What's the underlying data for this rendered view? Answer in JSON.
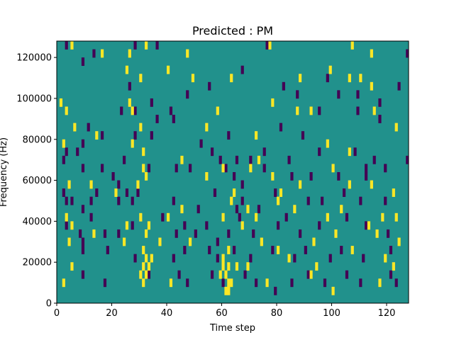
{
  "chart_data": {
    "type": "heatmap",
    "title": "Predicted : PM",
    "xlabel": "Time step",
    "ylabel": "Frequency (Hz)",
    "xlim": [
      0,
      128
    ],
    "ylim": [
      0,
      128000
    ],
    "xticks": [
      0,
      20,
      40,
      60,
      80,
      100,
      120
    ],
    "yticks": [
      0,
      20000,
      40000,
      60000,
      80000,
      100000,
      120000
    ],
    "xtick_labels": [
      "0",
      "20",
      "40",
      "60",
      "80",
      "100",
      "120"
    ],
    "ytick_labels": [
      "0",
      "20000",
      "40000",
      "60000",
      "80000",
      "100000",
      "120000"
    ],
    "grid": false,
    "bin_width": 1,
    "bin_height": 4000,
    "colors": {
      "background": "#21918c",
      "low": "#440154",
      "high": "#fde725",
      "axes": "#000000"
    },
    "cells_low": [
      [
        3,
        124000
      ],
      [
        9,
        116000
      ],
      [
        13,
        120000
      ],
      [
        28,
        124000
      ],
      [
        36,
        124000
      ],
      [
        76,
        124000
      ],
      [
        127,
        120000
      ],
      [
        26,
        104000
      ],
      [
        34,
        96000
      ],
      [
        41,
        92000
      ],
      [
        47,
        100000
      ],
      [
        55,
        104000
      ],
      [
        67,
        112000
      ],
      [
        82,
        104000
      ],
      [
        87,
        100000
      ],
      [
        98,
        108000
      ],
      [
        102,
        100000
      ],
      [
        109,
        100000
      ],
      [
        117,
        96000
      ],
      [
        124,
        104000
      ],
      [
        23,
        92000
      ],
      [
        28,
        92000
      ],
      [
        36,
        88000
      ],
      [
        42,
        88000
      ],
      [
        81,
        84000
      ],
      [
        95,
        92000
      ],
      [
        109,
        92000
      ],
      [
        117,
        88000
      ],
      [
        11,
        84000
      ],
      [
        16,
        80000
      ],
      [
        28,
        80000
      ],
      [
        34,
        80000
      ],
      [
        62,
        80000
      ],
      [
        89,
        80000
      ],
      [
        3,
        72000
      ],
      [
        7,
        72000
      ],
      [
        9,
        76000
      ],
      [
        24,
        68000
      ],
      [
        52,
        76000
      ],
      [
        56,
        72000
      ],
      [
        65,
        68000
      ],
      [
        70,
        68000
      ],
      [
        75,
        72000
      ],
      [
        84,
        68000
      ],
      [
        95,
        72000
      ],
      [
        108,
        72000
      ],
      [
        115,
        68000
      ],
      [
        112,
        64000
      ],
      [
        119,
        64000
      ],
      [
        127,
        68000
      ],
      [
        2,
        68000
      ],
      [
        9,
        64000
      ],
      [
        16,
        64000
      ],
      [
        20,
        60000
      ],
      [
        22,
        56000
      ],
      [
        25,
        52000
      ],
      [
        33,
        64000
      ],
      [
        43,
        64000
      ],
      [
        48,
        64000
      ],
      [
        59,
        68000
      ],
      [
        61,
        64000
      ],
      [
        64,
        60000
      ],
      [
        67,
        56000
      ],
      [
        75,
        64000
      ],
      [
        85,
        60000
      ],
      [
        92,
        60000
      ],
      [
        102,
        60000
      ],
      [
        112,
        60000
      ],
      [
        2,
        52000
      ],
      [
        3,
        48000
      ],
      [
        5,
        48000
      ],
      [
        9,
        44000
      ],
      [
        12,
        48000
      ],
      [
        14,
        52000
      ],
      [
        22,
        48000
      ],
      [
        27,
        48000
      ],
      [
        29,
        52000
      ],
      [
        42,
        48000
      ],
      [
        51,
        44000
      ],
      [
        57,
        52000
      ],
      [
        65,
        44000
      ],
      [
        67,
        48000
      ],
      [
        73,
        44000
      ],
      [
        79,
        52000
      ],
      [
        91,
        48000
      ],
      [
        96,
        48000
      ],
      [
        104,
        52000
      ],
      [
        110,
        48000
      ],
      [
        119,
        48000
      ],
      [
        3,
        36000
      ],
      [
        8,
        32000
      ],
      [
        9,
        28000
      ],
      [
        12,
        40000
      ],
      [
        17,
        32000
      ],
      [
        22,
        32000
      ],
      [
        27,
        36000
      ],
      [
        38,
        40000
      ],
      [
        43,
        32000
      ],
      [
        46,
        36000
      ],
      [
        50,
        32000
      ],
      [
        54,
        36000
      ],
      [
        58,
        28000
      ],
      [
        62,
        32000
      ],
      [
        66,
        40000
      ],
      [
        71,
        32000
      ],
      [
        80,
        36000
      ],
      [
        83,
        40000
      ],
      [
        88,
        32000
      ],
      [
        95,
        36000
      ],
      [
        105,
        40000
      ],
      [
        112,
        36000
      ],
      [
        120,
        32000
      ],
      [
        9,
        24000
      ],
      [
        18,
        24000
      ],
      [
        28,
        20000
      ],
      [
        42,
        20000
      ],
      [
        46,
        24000
      ],
      [
        55,
        24000
      ],
      [
        58,
        20000
      ],
      [
        64,
        24000
      ],
      [
        70,
        20000
      ],
      [
        78,
        24000
      ],
      [
        86,
        20000
      ],
      [
        90,
        24000
      ],
      [
        99,
        20000
      ],
      [
        103,
        24000
      ],
      [
        111,
        20000
      ],
      [
        121,
        24000
      ],
      [
        9,
        12000
      ],
      [
        17,
        8000
      ],
      [
        33,
        12000
      ],
      [
        44,
        12000
      ],
      [
        47,
        8000
      ],
      [
        56,
        12000
      ],
      [
        60,
        8000
      ],
      [
        68,
        12000
      ],
      [
        72,
        8000
      ],
      [
        79,
        4000
      ],
      [
        85,
        8000
      ],
      [
        91,
        12000
      ],
      [
        97,
        8000
      ],
      [
        105,
        12000
      ],
      [
        110,
        8000
      ],
      [
        121,
        12000
      ],
      [
        123,
        8000
      ]
    ],
    "cells_high": [
      [
        5,
        124000
      ],
      [
        16,
        120000
      ],
      [
        26,
        120000
      ],
      [
        32,
        124000
      ],
      [
        47,
        120000
      ],
      [
        77,
        124000
      ],
      [
        107,
        124000
      ],
      [
        114,
        120000
      ],
      [
        25,
        112000
      ],
      [
        40,
        112000
      ],
      [
        30,
        108000
      ],
      [
        49,
        108000
      ],
      [
        63,
        108000
      ],
      [
        88,
        108000
      ],
      [
        99,
        112000
      ],
      [
        106,
        108000
      ],
      [
        110,
        108000
      ],
      [
        114,
        104000
      ],
      [
        1,
        96000
      ],
      [
        3,
        92000
      ],
      [
        6,
        84000
      ],
      [
        26,
        96000
      ],
      [
        27,
        92000
      ],
      [
        30,
        84000
      ],
      [
        58,
        92000
      ],
      [
        78,
        96000
      ],
      [
        87,
        92000
      ],
      [
        92,
        92000
      ],
      [
        115,
        92000
      ],
      [
        123,
        84000
      ],
      [
        2,
        76000
      ],
      [
        14,
        80000
      ],
      [
        27,
        76000
      ],
      [
        31,
        72000
      ],
      [
        54,
        84000
      ],
      [
        72,
        80000
      ],
      [
        98,
        76000
      ],
      [
        106,
        72000
      ],
      [
        4,
        56000
      ],
      [
        12,
        56000
      ],
      [
        21,
        52000
      ],
      [
        29,
        56000
      ],
      [
        31,
        64000
      ],
      [
        32,
        60000
      ],
      [
        45,
        68000
      ],
      [
        54,
        60000
      ],
      [
        60,
        64000
      ],
      [
        64,
        52000
      ],
      [
        70,
        64000
      ],
      [
        73,
        68000
      ],
      [
        78,
        60000
      ],
      [
        81,
        52000
      ],
      [
        88,
        56000
      ],
      [
        100,
        64000
      ],
      [
        106,
        56000
      ],
      [
        114,
        56000
      ],
      [
        122,
        52000
      ],
      [
        3,
        40000
      ],
      [
        5,
        36000
      ],
      [
        25,
        36000
      ],
      [
        30,
        40000
      ],
      [
        32,
        32000
      ],
      [
        33,
        36000
      ],
      [
        40,
        40000
      ],
      [
        45,
        44000
      ],
      [
        60,
        40000
      ],
      [
        63,
        48000
      ],
      [
        67,
        36000
      ],
      [
        69,
        44000
      ],
      [
        72,
        40000
      ],
      [
        80,
        48000
      ],
      [
        86,
        44000
      ],
      [
        98,
        40000
      ],
      [
        103,
        44000
      ],
      [
        113,
        36000
      ],
      [
        116,
        32000
      ],
      [
        118,
        40000
      ],
      [
        123,
        40000
      ],
      [
        4,
        28000
      ],
      [
        13,
        32000
      ],
      [
        24,
        28000
      ],
      [
        31,
        24000
      ],
      [
        34,
        20000
      ],
      [
        37,
        28000
      ],
      [
        48,
        28000
      ],
      [
        60,
        20000
      ],
      [
        62,
        24000
      ],
      [
        65,
        16000
      ],
      [
        74,
        28000
      ],
      [
        80,
        24000
      ],
      [
        84,
        20000
      ],
      [
        93,
        28000
      ],
      [
        101,
        32000
      ],
      [
        107,
        24000
      ],
      [
        119,
        20000
      ],
      [
        124,
        28000
      ],
      [
        2,
        8000
      ],
      [
        5,
        16000
      ],
      [
        30,
        12000
      ],
      [
        31,
        8000
      ],
      [
        41,
        8000
      ],
      [
        59,
        12000
      ],
      [
        61,
        4000
      ],
      [
        63,
        8000
      ],
      [
        69,
        16000
      ],
      [
        76,
        8000
      ],
      [
        92,
        12000
      ],
      [
        94,
        16000
      ],
      [
        100,
        4000
      ],
      [
        117,
        8000
      ],
      [
        122,
        16000
      ],
      [
        31,
        16000
      ],
      [
        32,
        12000
      ],
      [
        32,
        20000
      ],
      [
        33,
        16000
      ],
      [
        60,
        16000
      ],
      [
        61,
        12000
      ],
      [
        62,
        16000
      ],
      [
        62,
        8000
      ],
      [
        62,
        4000
      ]
    ]
  }
}
